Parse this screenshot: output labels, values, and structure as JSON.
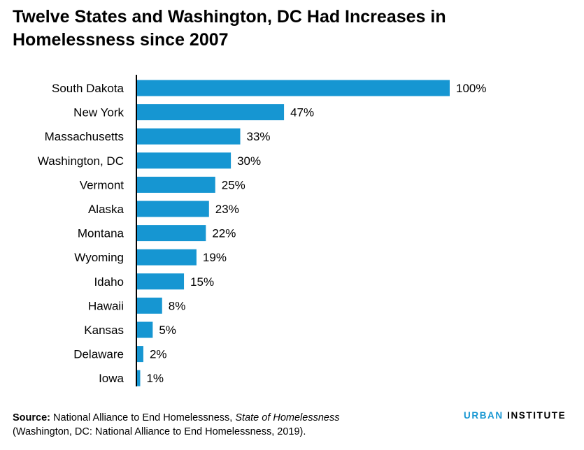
{
  "chart_data": {
    "type": "bar",
    "orientation": "horizontal",
    "title": "Twelve States and Washington, DC Had Increases in Homelessness since 2007",
    "categories": [
      "South Dakota",
      "New York",
      "Massachusetts",
      "Washington, DC",
      "Vermont",
      "Alaska",
      "Montana",
      "Wyoming",
      "Idaho",
      "Hawaii",
      "Kansas",
      "Delaware",
      "Iowa"
    ],
    "values": [
      100,
      47,
      33,
      30,
      25,
      23,
      22,
      19,
      15,
      8,
      5,
      2,
      1
    ],
    "data_labels": [
      "100%",
      "47%",
      "33%",
      "30%",
      "25%",
      "23%",
      "22%",
      "19%",
      "15%",
      "8%",
      "5%",
      "2%",
      "1%"
    ],
    "xlim": [
      0,
      100
    ],
    "grid": false,
    "bar_color": "#1696d2"
  },
  "source": {
    "label": "Source:",
    "text1": " National Alliance to End Homelessness, ",
    "italic": "State of Homelessness",
    "text2": "(Washington, DC: National Alliance to End Homelessness, 2019)."
  },
  "logo": {
    "part1": "URBAN",
    "part2": "INSTITUTE",
    "color1": "#1696d2",
    "color2": "#000000"
  }
}
